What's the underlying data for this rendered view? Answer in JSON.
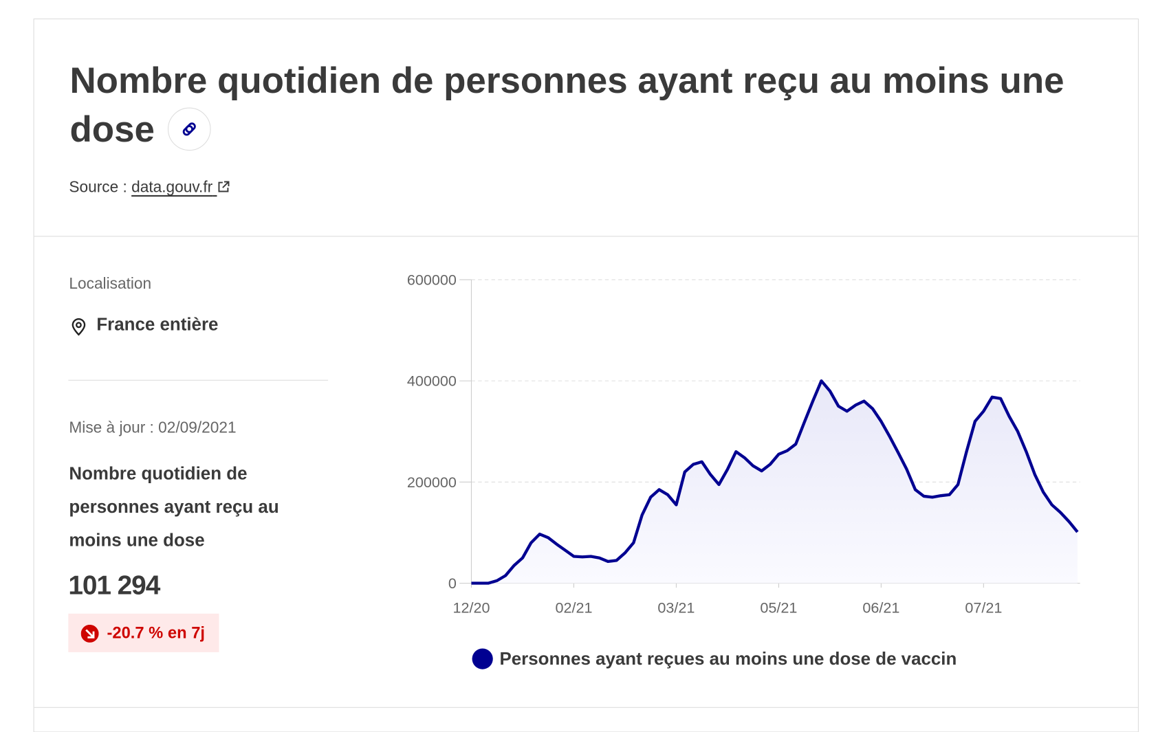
{
  "header": {
    "title": "Nombre quotidien de personnes ayant reçu au moins une dose",
    "source_label": "Source :",
    "source_link": "data.gouv.fr"
  },
  "sidebar": {
    "location_label": "Localisation",
    "location": "France entière",
    "updated": "Mise à jour : 02/09/2021",
    "indicator": "Nombre quotidien de personnes ayant reçu au moins une dose",
    "value": "101 294",
    "change": "-20.7 % en 7j"
  },
  "chart_data": {
    "type": "line",
    "categories": [
      "12/20",
      null,
      null,
      null,
      null,
      null,
      null,
      null,
      null,
      null,
      null,
      null,
      "02/21",
      null,
      null,
      null,
      null,
      null,
      null,
      null,
      null,
      null,
      null,
      null,
      "03/21",
      null,
      null,
      null,
      null,
      null,
      null,
      null,
      null,
      null,
      null,
      null,
      "05/21",
      null,
      null,
      null,
      null,
      null,
      null,
      null,
      null,
      null,
      null,
      null,
      "06/21",
      null,
      null,
      null,
      null,
      null,
      null,
      null,
      null,
      null,
      null,
      null,
      "07/21",
      null,
      null,
      null,
      null,
      null,
      null,
      null,
      null,
      null,
      null,
      null
    ],
    "series": [
      {
        "name": "Personnes ayant reçues au moins une dose de vaccin",
        "color": "#000091",
        "values": [
          0,
          0,
          0,
          5000,
          15000,
          35000,
          50000,
          80000,
          97000,
          90000,
          77000,
          65000,
          53000,
          52000,
          53000,
          50000,
          43000,
          45000,
          60000,
          80000,
          135000,
          170000,
          185000,
          175000,
          155000,
          220000,
          235000,
          240000,
          215000,
          195000,
          225000,
          260000,
          248000,
          232000,
          222000,
          235000,
          255000,
          262000,
          275000,
          318000,
          360000,
          400000,
          380000,
          350000,
          340000,
          352000,
          360000,
          345000,
          320000,
          290000,
          258000,
          225000,
          185000,
          172000,
          170000,
          173000,
          175000,
          195000,
          260000,
          320000,
          340000,
          368000,
          365000,
          330000,
          300000,
          260000,
          215000,
          180000,
          155000,
          140000,
          122000,
          101294
        ]
      }
    ],
    "ylim": [
      0,
      600000
    ],
    "yticks": [
      0,
      200000,
      400000,
      600000
    ],
    "grid": true
  }
}
